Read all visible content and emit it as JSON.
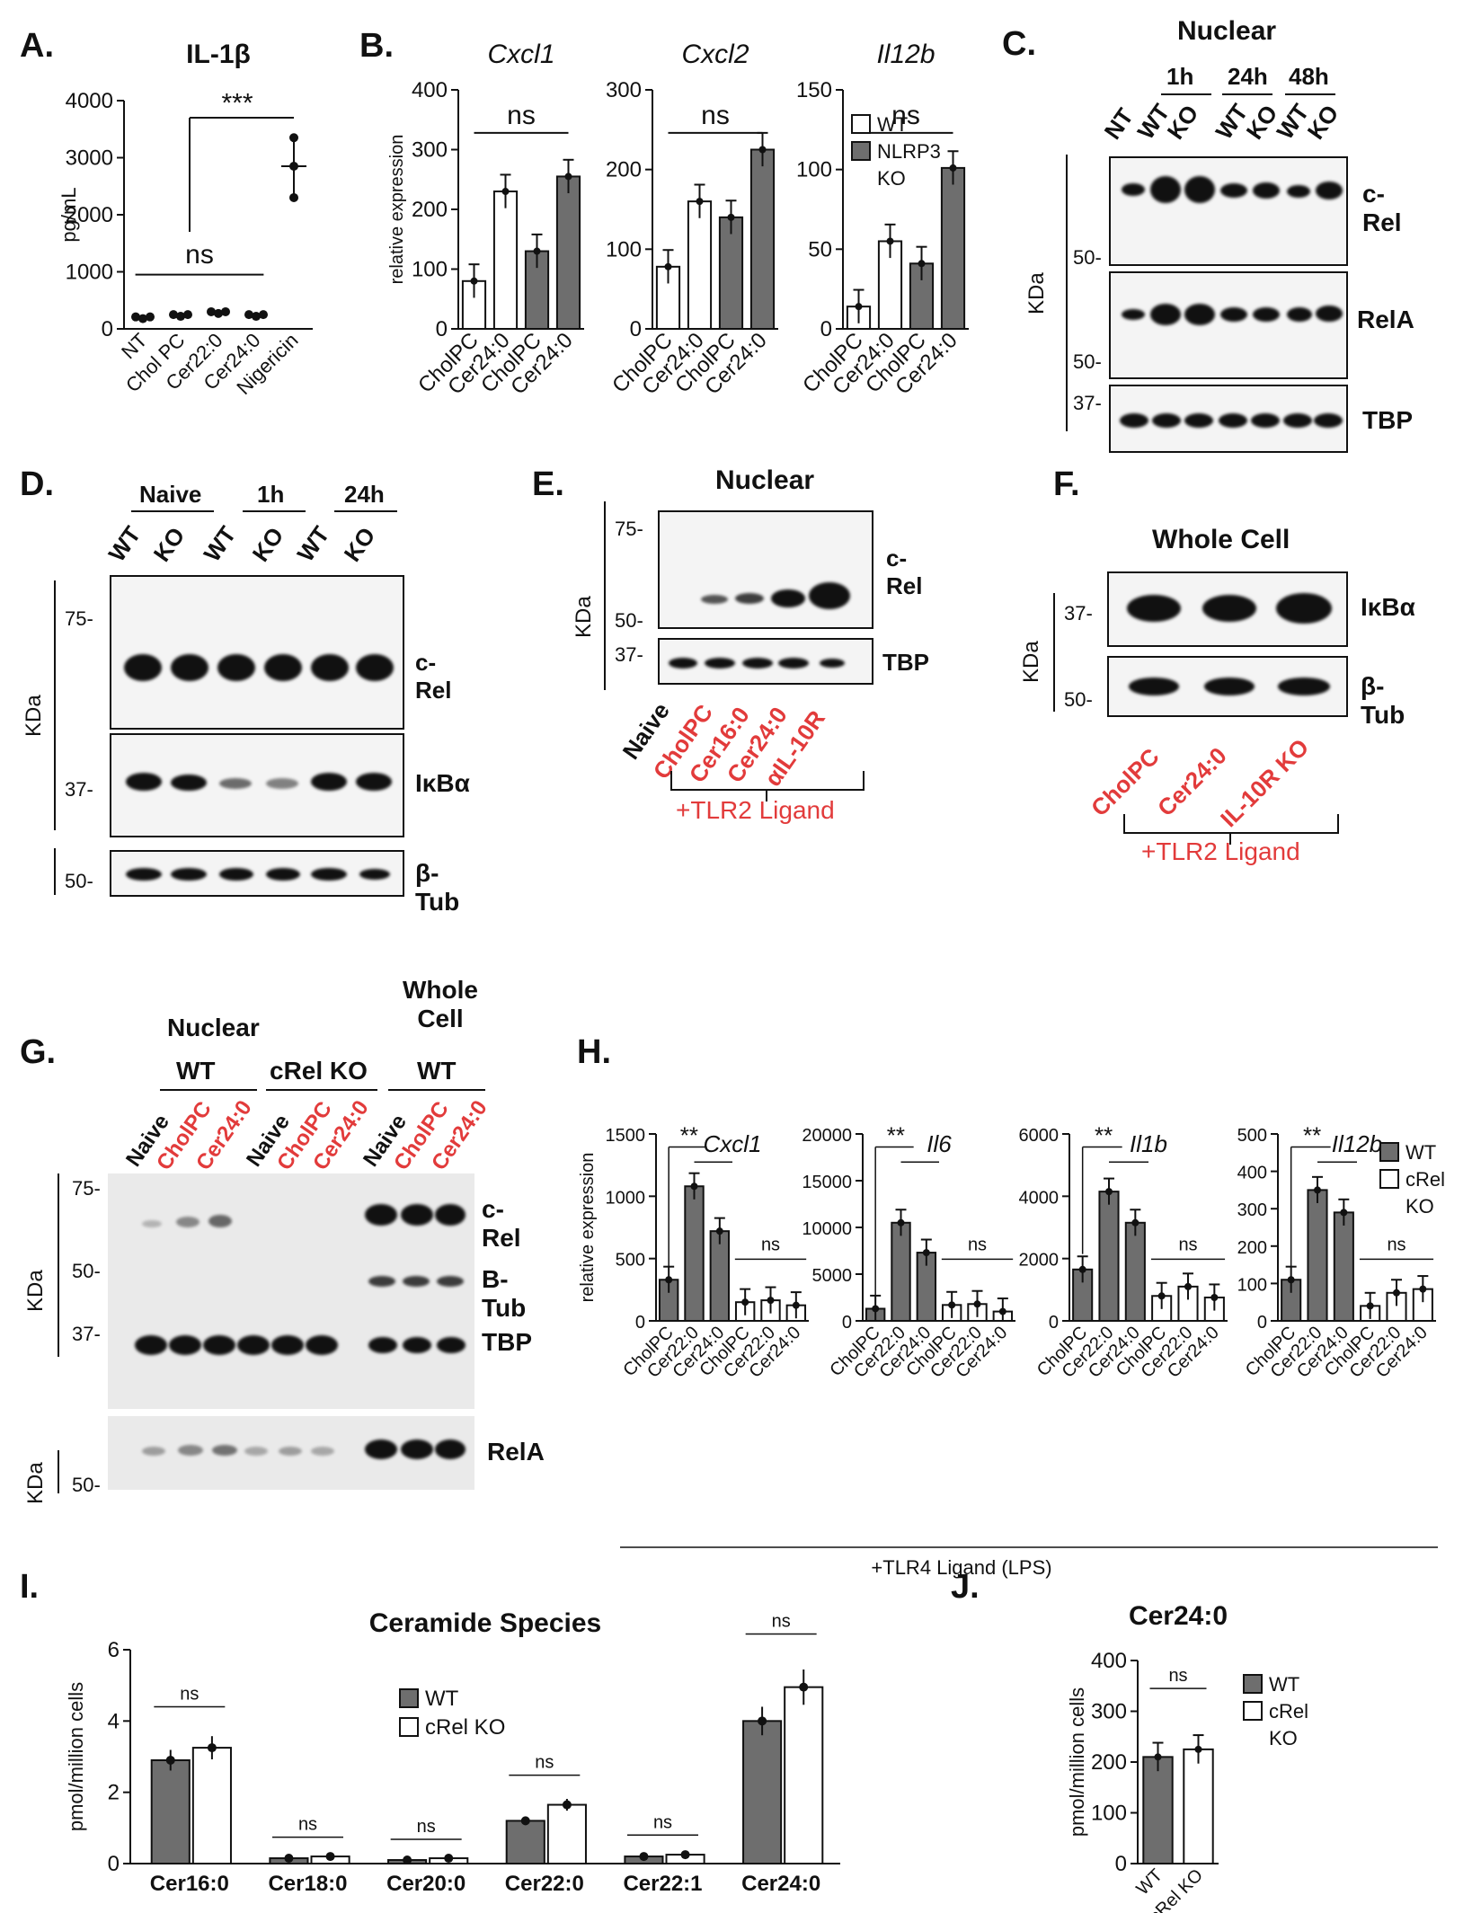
{
  "panels": {
    "A": "A.",
    "B": "B.",
    "C": "C.",
    "D": "D.",
    "E": "E.",
    "F": "F.",
    "G": "G.",
    "H": "H.",
    "I": "I.",
    "J": "J."
  },
  "colors": {
    "grey": "#6e6e6e",
    "white": "#ffffff",
    "red": "#e23b3b",
    "black": "#111111"
  },
  "blots": {
    "C": {
      "title": "Nuclear",
      "groups": [
        "1h",
        "24h",
        "48h"
      ],
      "lanes": [
        "NT",
        "WT",
        "KO",
        "WT",
        "KO",
        "WT",
        "KO"
      ],
      "rows": [
        "c-Rel",
        "RelA",
        "TBP"
      ],
      "markers": [
        "50-",
        "50-",
        "37-"
      ],
      "kda": "KDa"
    },
    "D": {
      "groups": [
        "Naive",
        "1h",
        "24h"
      ],
      "lanes": [
        "WT",
        "KO",
        "WT",
        "KO",
        "WT",
        "KO"
      ],
      "rows": [
        "c-Rel",
        "IκBα",
        "β-Tub"
      ],
      "markers": [
        "75-",
        "37-",
        "50-"
      ],
      "kda": "KDa"
    },
    "E": {
      "title": "Nuclear",
      "lanes": [
        "Naive",
        "CholPC",
        "Cer16:0",
        "Cer24:0",
        "αIL-10R"
      ],
      "rows": [
        "c-Rel",
        "TBP"
      ],
      "markers": [
        "75-",
        "50-",
        "37-"
      ],
      "kda": "KDa",
      "bracket": "+TLR2 Ligand"
    },
    "F": {
      "title": "Whole Cell",
      "lanes": [
        "CholPC",
        "Cer24:0",
        "IL-10R KO"
      ],
      "rows": [
        "IκBα",
        "β-Tub"
      ],
      "markers": [
        "37-",
        "50-"
      ],
      "kda": "KDa",
      "bracket": "+TLR2 Ligand"
    },
    "G": {
      "header1": "Nuclear",
      "header2a": "WT",
      "header2b": "cRel KO",
      "header3": "Whole Cell",
      "header4": "WT",
      "lanes": [
        "Naive",
        "CholPC",
        "Cer24:0",
        "Naive",
        "CholPC",
        "Cer24:0",
        "Naive",
        "CholPC",
        "Cer24:0"
      ],
      "rows": [
        "c-Rel",
        "B-Tub",
        "TBP",
        "RelA"
      ],
      "markers": [
        "75-",
        "50-",
        "37-",
        "50-"
      ],
      "kda": "KDa"
    }
  },
  "chart_data": [
    {
      "id": "A",
      "type": "scatter",
      "title": "IL-1β",
      "ylabel": "pg/mL",
      "categories": [
        "NT",
        "Chol PC",
        "Cer22:0",
        "Cer24:0",
        "Nigericin"
      ],
      "values": [
        180,
        220,
        270,
        220,
        2850
      ],
      "ylim": [
        0,
        4000
      ],
      "yticks": [
        "0",
        "1000",
        "2000",
        "3000",
        "4000"
      ],
      "annotations": [
        "***",
        "ns"
      ]
    },
    {
      "id": "B1",
      "type": "bar",
      "title": "Cxcl1",
      "ylabel": "relative expression",
      "categories": [
        "CholPC",
        "Cer24:0",
        "CholPC",
        "Cer24:0"
      ],
      "values": [
        80,
        230,
        130,
        255
      ],
      "ylim": [
        0,
        400
      ],
      "yticks": [
        "0",
        "100",
        "200",
        "300",
        "400"
      ],
      "annotations": [
        "ns"
      ]
    },
    {
      "id": "B2",
      "type": "bar",
      "title": "Cxcl2",
      "categories": [
        "CholPC",
        "Cer24:0",
        "CholPC",
        "Cer24:0"
      ],
      "values": [
        78,
        160,
        140,
        225
      ],
      "ylim": [
        0,
        300
      ],
      "yticks": [
        "0",
        "100",
        "200",
        "300"
      ],
      "annotations": [
        "ns"
      ]
    },
    {
      "id": "B3",
      "type": "bar",
      "title": "Il12b",
      "categories": [
        "CholPC",
        "Cer24:0",
        "CholPC",
        "Cer24:0"
      ],
      "values": [
        14,
        55,
        41,
        101
      ],
      "ylim": [
        0,
        150
      ],
      "yticks": [
        "0",
        "50",
        "100",
        "150"
      ],
      "annotations": [
        "ns"
      ],
      "legend": [
        "WT",
        "NLRP3 KO"
      ]
    },
    {
      "id": "H1",
      "type": "bar",
      "title": "Cxcl1",
      "ylabel": "relative expression",
      "categories": [
        "CholPC",
        "Cer22:0",
        "Cer24:0",
        "CholPC",
        "Cer22:0",
        "Cer24:0"
      ],
      "values": [
        330,
        1080,
        720,
        150,
        165,
        125
      ],
      "ylim": [
        0,
        1500
      ],
      "yticks": [
        "0",
        "500",
        "1000",
        "1500"
      ],
      "annotations": [
        "**",
        "ns"
      ]
    },
    {
      "id": "H2",
      "type": "bar",
      "title": "Il6",
      "categories": [
        "CholPC",
        "Cer22:0",
        "Cer24:0",
        "CholPC",
        "Cer22:0",
        "Cer24:0"
      ],
      "values": [
        1300,
        10500,
        7300,
        1700,
        1800,
        1000
      ],
      "ylim": [
        0,
        20000
      ],
      "yticks": [
        "0",
        "5000",
        "10000",
        "15000",
        "20000"
      ],
      "annotations": [
        "**",
        "ns"
      ]
    },
    {
      "id": "H3",
      "type": "bar",
      "title": "Il1b",
      "categories": [
        "CholPC",
        "Cer22:0",
        "Cer24:0",
        "CholPC",
        "Cer22:0",
        "Cer24:0"
      ],
      "values": [
        1650,
        4150,
        3150,
        800,
        1100,
        750
      ],
      "ylim": [
        0,
        6000
      ],
      "yticks": [
        "0",
        "2000",
        "4000",
        "6000"
      ],
      "annotations": [
        "**",
        "ns"
      ]
    },
    {
      "id": "H4",
      "type": "bar",
      "title": "Il12b",
      "categories": [
        "CholPC",
        "Cer22:0",
        "Cer24:0",
        "CholPC",
        "Cer22:0",
        "Cer24:0"
      ],
      "values": [
        110,
        350,
        290,
        40,
        75,
        85
      ],
      "ylim": [
        0,
        500
      ],
      "yticks": [
        "0",
        "100",
        "200",
        "300",
        "400",
        "500"
      ],
      "annotations": [
        "**",
        "ns"
      ],
      "legend": [
        "WT",
        "cRel KO"
      ],
      "footer": "+TLR4 Ligand (LPS)"
    },
    {
      "id": "I",
      "type": "bar",
      "title": "Ceramide Species",
      "ylabel": "pmol/million cells",
      "categories": [
        "Cer16:0",
        "Cer18:0",
        "Cer20:0",
        "Cer22:0",
        "Cer22:1",
        "Cer24:0"
      ],
      "series": [
        {
          "name": "WT",
          "values": [
            2.9,
            0.15,
            0.1,
            1.2,
            0.2,
            4.0
          ]
        },
        {
          "name": "cRel KO",
          "values": [
            3.25,
            0.2,
            0.15,
            1.65,
            0.25,
            4.95
          ]
        }
      ],
      "ylim": [
        0,
        6
      ],
      "yticks": [
        "0",
        "2",
        "4",
        "6"
      ],
      "annotations": [
        "ns"
      ]
    },
    {
      "id": "J",
      "type": "bar",
      "title": "Cer24:0",
      "ylabel": "pmol/million cells",
      "categories": [
        "WT",
        "cRel KO"
      ],
      "values": [
        210,
        225
      ],
      "ylim": [
        0,
        400
      ],
      "yticks": [
        "0",
        "100",
        "200",
        "300",
        "400"
      ],
      "annotations": [
        "ns"
      ],
      "legend": [
        "WT",
        "cRel KO"
      ]
    }
  ]
}
